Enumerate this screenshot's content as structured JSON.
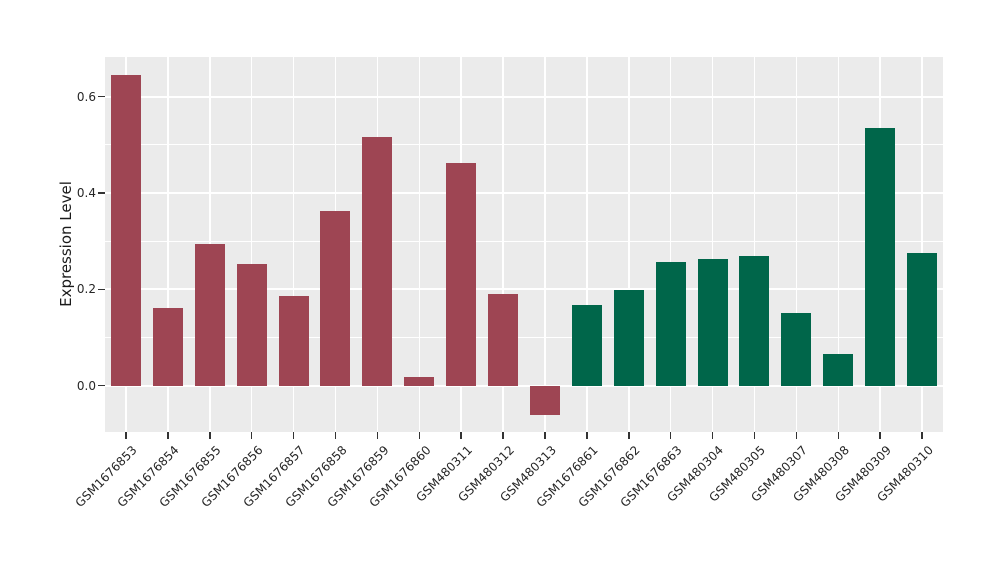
{
  "figure": {
    "background_color": "#ffffff",
    "panel_background_color": "#ebebeb",
    "grid_color": "#ffffff",
    "tick_color": "#333333",
    "text_color": "#262626"
  },
  "chart_data": {
    "type": "bar",
    "title": "",
    "xlabel": "",
    "ylabel": "Expression Level",
    "legend": "none",
    "grid": "on",
    "ylim": [
      -0.096,
      0.682
    ],
    "y_tick_labels": [
      "0.0",
      "0.2",
      "0.4",
      "0.6"
    ],
    "y_major_ticks": [
      0.0,
      0.2,
      0.4,
      0.6
    ],
    "y_minor_gridlines": [
      0.1,
      0.3,
      0.5
    ],
    "x_tick_rotation_deg": 45,
    "categories": [
      "GSM1676853",
      "GSM1676854",
      "GSM1676855",
      "GSM1676856",
      "GSM1676857",
      "GSM1676858",
      "GSM1676859",
      "GSM1676860",
      "GSM480311",
      "GSM480312",
      "GSM480313",
      "GSM1676861",
      "GSM1676862",
      "GSM1676863",
      "GSM480304",
      "GSM480305",
      "GSM480307",
      "GSM480308",
      "GSM480309",
      "GSM480310"
    ],
    "values": [
      0.645,
      0.161,
      0.295,
      0.252,
      0.187,
      0.362,
      0.515,
      0.019,
      0.463,
      0.19,
      -0.061,
      0.167,
      0.199,
      0.257,
      0.262,
      0.27,
      0.151,
      0.065,
      0.534,
      0.276
    ],
    "bar_colors": [
      "#9e4553",
      "#9e4553",
      "#9e4553",
      "#9e4553",
      "#9e4553",
      "#9e4553",
      "#9e4553",
      "#9e4553",
      "#9e4553",
      "#9e4553",
      "#9e4553",
      "#00664a",
      "#00664a",
      "#00664a",
      "#00664a",
      "#00664a",
      "#00664a",
      "#00664a",
      "#00664a",
      "#00664a"
    ],
    "color_groups": [
      {
        "color": "#9e4553",
        "first_category": "GSM1676853",
        "last_category": "GSM480313"
      },
      {
        "color": "#00664a",
        "first_category": "GSM1676861",
        "last_category": "GSM480310"
      }
    ]
  }
}
